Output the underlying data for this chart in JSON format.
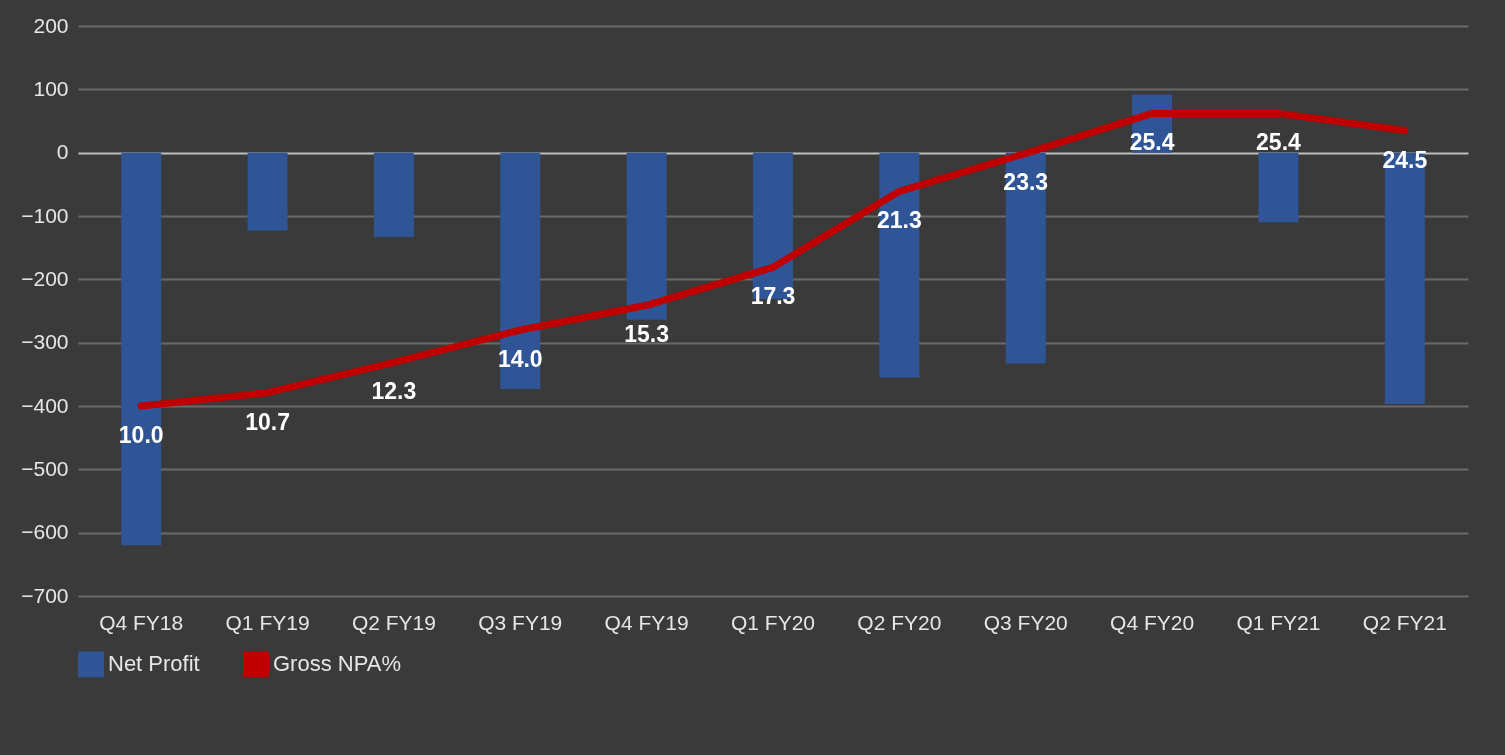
{
  "chart_data": {
    "type": "bar",
    "categories": [
      "Q4 FY18",
      "Q1 FY19",
      "Q2 FY19",
      "Q3 FY19",
      "Q4 FY19",
      "Q1 FY20",
      "Q2 FY20",
      "Q3 FY20",
      "Q4 FY20",
      "Q1 FY21",
      "Q2 FY21"
    ],
    "series": [
      {
        "name": "Net Profit",
        "color": "#2f5597",
        "values": [
          -620,
          -123,
          -133,
          -373,
          -264,
          -231,
          -355,
          -333,
          92,
          -110,
          -397
        ]
      },
      {
        "name": "Gross NPA%",
        "type": "line",
        "axis": "y2",
        "color": "#c00000",
        "values": [
          10.0,
          10.7,
          12.3,
          14.0,
          15.3,
          17.3,
          21.3,
          23.3,
          25.4,
          25.4,
          24.5
        ],
        "value_labels": [
          "10.0",
          "10.7",
          "12.3",
          "14.0",
          "15.3",
          "17.3",
          "21.3",
          "23.3",
          "25.4",
          "25.4",
          "24.5"
        ]
      }
    ],
    "ylim": [
      -700,
      200
    ],
    "yticks": [
      -700,
      -600,
      -500,
      -400,
      -300,
      -200,
      -100,
      0,
      100,
      200
    ],
    "y2lim": [
      0,
      30
    ],
    "grid": "y",
    "legend": "bottom"
  }
}
